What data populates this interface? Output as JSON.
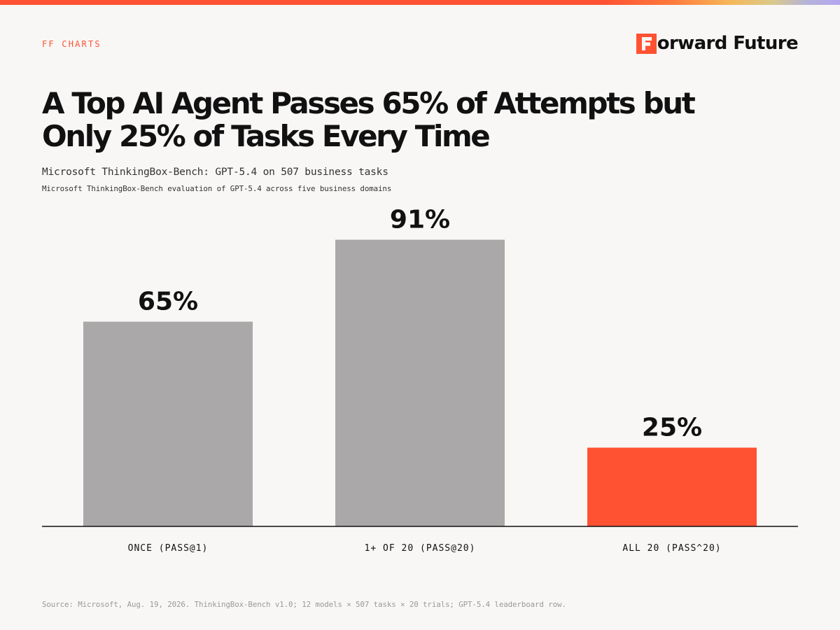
{
  "header": {
    "kicker": "FF CHARTS",
    "brand_name": "orward Future",
    "brand_logo_letter": "F"
  },
  "title_line1": "A Top AI Agent Passes 65% of Attempts but",
  "title_line2": "Only 25% of Tasks Every Time",
  "subtitle": "Microsoft ThinkingBox-Bench: GPT-5.4 on 507 business tasks",
  "subtitle_small": "Microsoft ThinkingBox-Bench evaluation of GPT-5.4 across five business domains",
  "source": "Source: Microsoft, Aug. 19, 2026. ThinkingBox-Bench v1.0; 12 models × 507 tasks × 20 trials; GPT-5.4 leaderboard row.",
  "colors": {
    "accent": "#ff5233",
    "bar_default": "#aaa8a8",
    "bar_highlight": "#ff5233",
    "background": "#f8f7f5",
    "text": "#111111"
  },
  "chart_data": {
    "type": "bar",
    "categories": [
      "ONCE (PASS@1)",
      "1+ OF 20 (PASS@20)",
      "ALL 20 (PASS^20)"
    ],
    "values": [
      65,
      91,
      25
    ],
    "value_labels": [
      "65%",
      "91%",
      "25%"
    ],
    "highlight_index": 2,
    "ylim": [
      0,
      100
    ],
    "grid": false,
    "legend": "none"
  }
}
